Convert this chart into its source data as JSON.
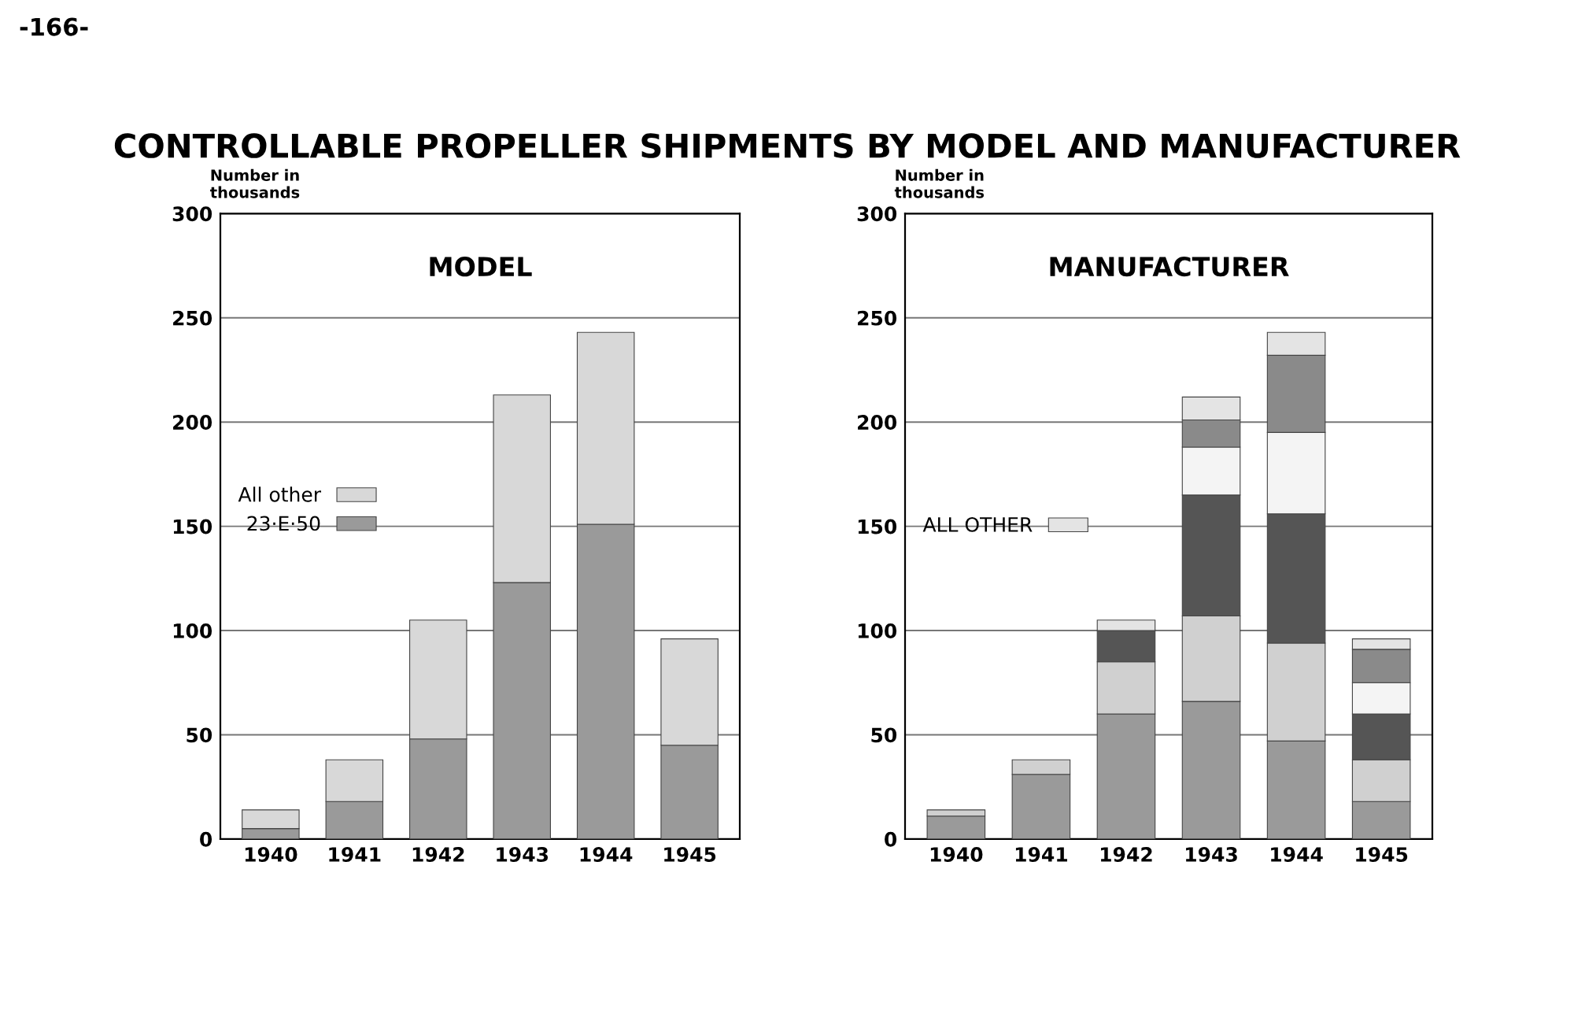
{
  "chart_data": [
    {
      "type": "bar",
      "title": "CONTROLLABLE PROPELLER SHIPMENTS BY MODEL AND MANUFACTURER",
      "subtitle": "MODEL",
      "ylabel": "Number in\nthousands",
      "annotations": [
        "-166-"
      ],
      "categories": [
        "1940",
        "1941",
        "1942",
        "1943",
        "1944",
        "1945"
      ],
      "stacked": true,
      "ylim": [
        0,
        300
      ],
      "yticks": [
        0,
        50,
        100,
        150,
        200,
        250,
        300
      ],
      "grid": "y",
      "legend": "center left",
      "series": [
        {
          "name": "23·E·50",
          "color": "#9a9a9a",
          "values": [
            5,
            18,
            48,
            123,
            151,
            45
          ]
        },
        {
          "name": "All other",
          "color": "#d8d8d8",
          "values": [
            9,
            20,
            57,
            90,
            92,
            51
          ]
        }
      ]
    },
    {
      "type": "bar",
      "subtitle": "MANUFACTURER",
      "ylabel": "Number in\nthousands",
      "categories": [
        "1940",
        "1941",
        "1942",
        "1943",
        "1944",
        "1945"
      ],
      "stacked": true,
      "ylim": [
        0,
        300
      ],
      "yticks": [
        0,
        50,
        100,
        150,
        200,
        250,
        300
      ],
      "grid": "y",
      "legend": "center left",
      "series": [
        {
          "color": "#9a9a9a",
          "values": [
            11,
            31,
            60,
            66,
            47,
            18
          ]
        },
        {
          "color": "#d0d0d0",
          "values": [
            3,
            7,
            25,
            41,
            47,
            20
          ]
        },
        {
          "color": "#555555",
          "values": [
            null,
            null,
            15,
            58,
            62,
            22
          ]
        },
        {
          "color": "#f4f4f4",
          "values": [
            null,
            null,
            null,
            23,
            39,
            15
          ]
        },
        {
          "color": "#8a8a8a",
          "values": [
            null,
            null,
            null,
            13,
            37,
            16
          ]
        },
        {
          "name": "ALL OTHER",
          "color": "#e4e4e4",
          "values": [
            null,
            null,
            5,
            11,
            11,
            5
          ]
        }
      ]
    }
  ]
}
